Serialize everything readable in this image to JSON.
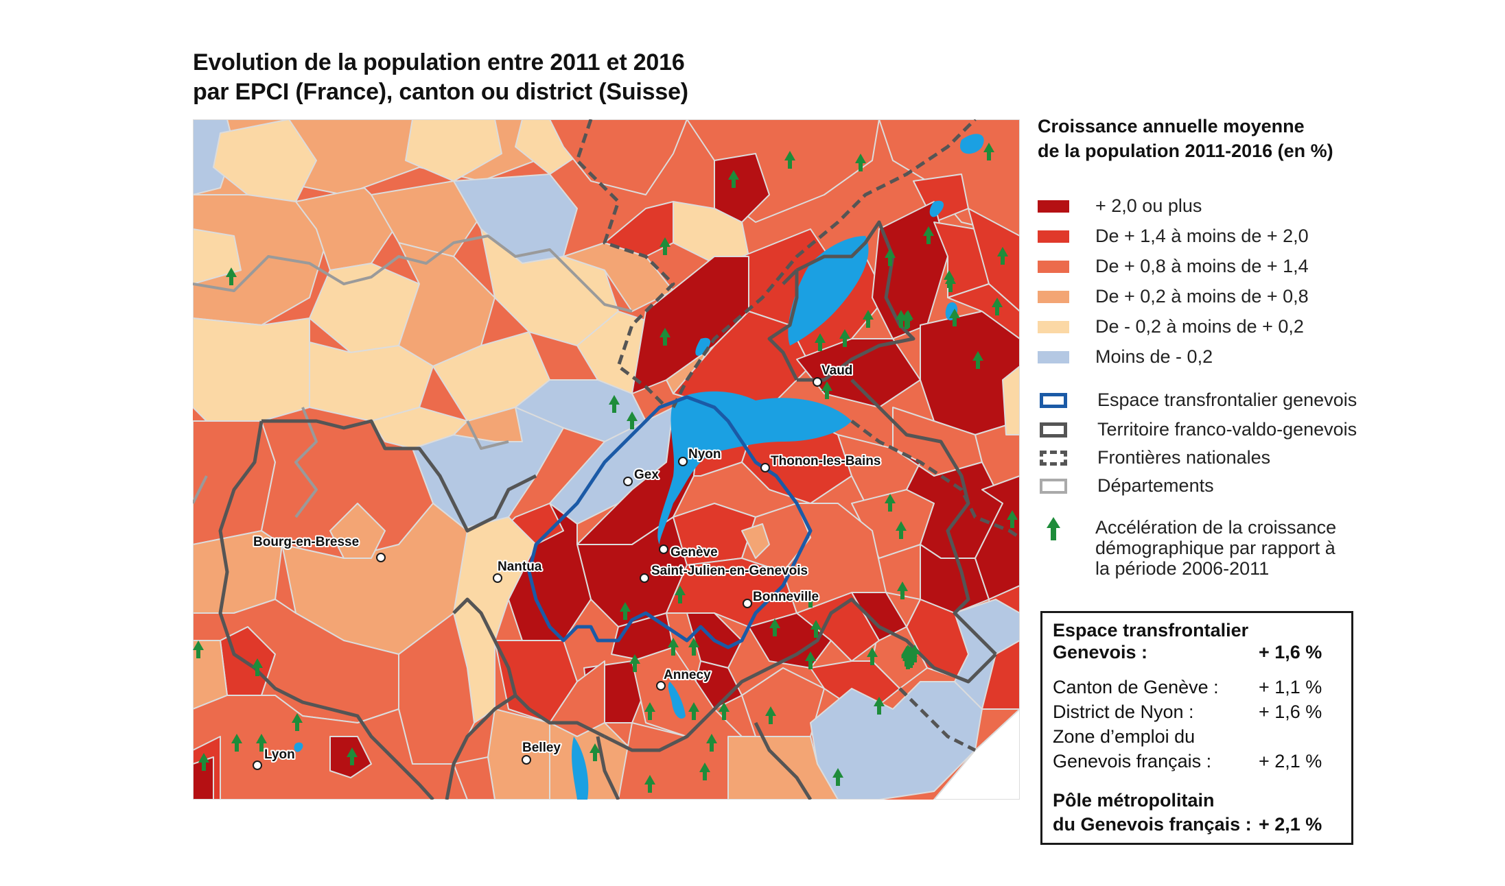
{
  "title": {
    "line1": "Evolution de la population entre 2011 et 2016",
    "line2": "par EPCI (France), canton ou district (Suisse)"
  },
  "legend": {
    "title_line1": "Croissance annuelle moyenne",
    "title_line2": "de la population 2011-2016 (en %)",
    "classes": [
      {
        "label": "+ 2,0 ou plus",
        "color": "#b51013"
      },
      {
        "label": "De + 1,4 à moins de + 2,0",
        "color": "#e0392a"
      },
      {
        "label": "De + 0,8 à moins de + 1,4",
        "color": "#ec6b4c"
      },
      {
        "label": "De + 0,2 à moins de + 0,8",
        "color": "#f3a574"
      },
      {
        "label": "De - 0,2 à moins de + 0,2",
        "color": "#fbd8a5"
      },
      {
        "label": "Moins de - 0,2",
        "color": "#b4c8e3"
      }
    ],
    "boundaries": [
      {
        "label": "Espace transfrontalier genevois",
        "color": "#1b5aa6"
      },
      {
        "label": "Territoire franco-valdo-genevois",
        "color": "#555555"
      },
      {
        "label": "Frontières nationales",
        "color": "#555555"
      },
      {
        "label": "Départements",
        "color": "#aaaaaa"
      }
    ],
    "arrow": {
      "icon": "green-up-arrow-icon",
      "color": "#1e8c3a",
      "line1": "Accélération de la croissance",
      "line2": "démographique par rapport à",
      "line3": "la période 2006-2011"
    }
  },
  "stats": {
    "head_line1": "Espace transfrontalier",
    "head_line2": "Genevois :",
    "head_value": "+ 1,6 %",
    "rows": [
      {
        "label": "Canton de Genève :",
        "value": "+ 1,1 %"
      },
      {
        "label": "District de Nyon :",
        "value": "+ 1,6 %"
      }
    ],
    "zone_line1": "Zone d’emploi du",
    "zone_line2": "Genevois français :",
    "zone_value": "+ 2,1  %",
    "pole_line1": "Pôle métropolitain",
    "pole_line2": "du Genevois français :",
    "pole_value": "+ 2,1 %"
  },
  "map": {
    "water_color": "#1ba0e2",
    "cities": [
      {
        "name": "Gex"
      },
      {
        "name": "Nyon"
      },
      {
        "name": "Thonon-les-Bains"
      },
      {
        "name": "Vaud"
      },
      {
        "name": "Genève"
      },
      {
        "name": "Saint-Julien-en-Genevois"
      },
      {
        "name": "Bonneville"
      },
      {
        "name": "Bourg-en-Bresse"
      },
      {
        "name": "Nantua"
      },
      {
        "name": "Annecy"
      },
      {
        "name": "Belley"
      },
      {
        "name": "Lyon"
      }
    ]
  }
}
